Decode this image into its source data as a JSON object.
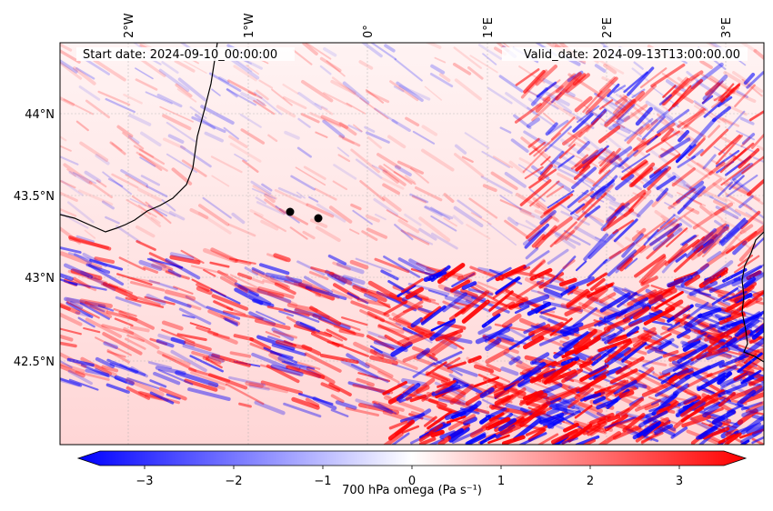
{
  "map": {
    "header": {
      "start_label": "Start date: 2024-09-10_00:00:00",
      "valid_label": "Valid_date: 2024-09-13T13:00:00.00"
    },
    "lon_labels": [
      "2°W",
      "1°W",
      "0°",
      "1°E",
      "2°E",
      "3°E"
    ],
    "lat_labels": [
      "44°N",
      "43.5°N",
      "43°N",
      "42.5°N"
    ],
    "markers": [
      {
        "name": "point-a"
      },
      {
        "name": "point-b"
      }
    ],
    "field_colors": {
      "negative": "#0000ff",
      "neutral": "#ffffff",
      "positive": "#ff0000"
    }
  },
  "colorbar": {
    "ticks": [
      "−3",
      "−2",
      "−1",
      "0",
      "1",
      "2",
      "3"
    ],
    "label": "700 hPa omega (Pa s⁻¹)",
    "range": [
      -3.5,
      3.5
    ]
  }
}
